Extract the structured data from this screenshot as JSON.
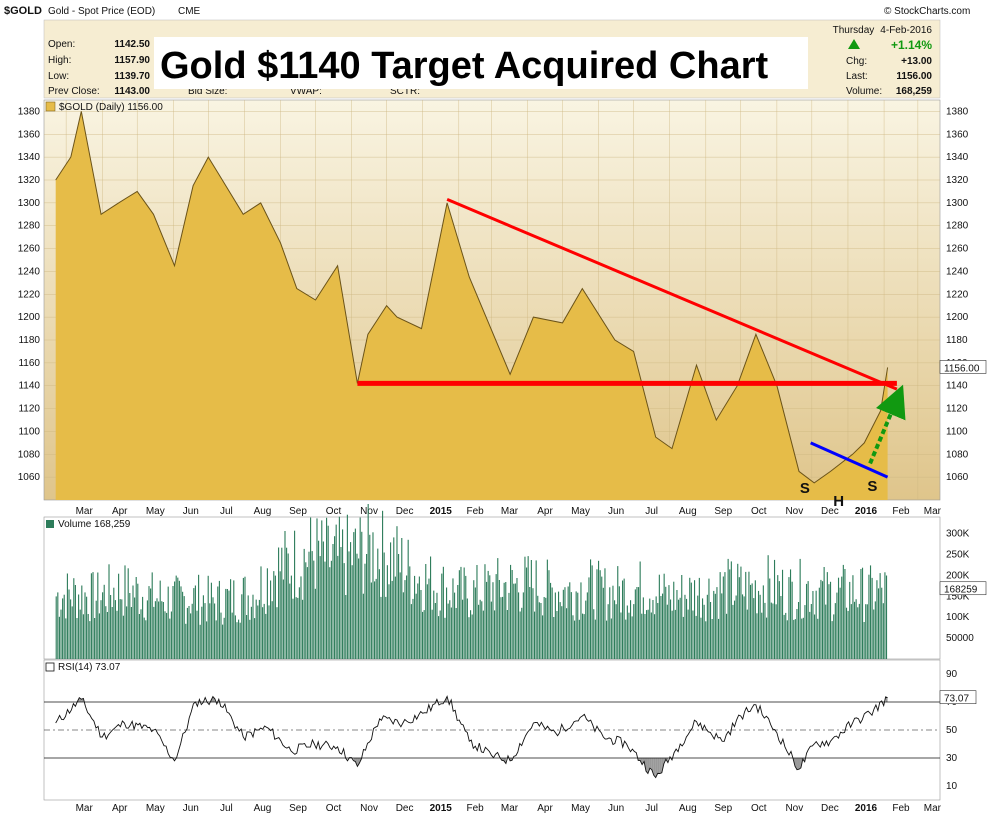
{
  "header": {
    "symbol": "$GOLD",
    "description": "Gold - Spot Price (EOD)",
    "exchange": "CME",
    "credit": "© StockCharts.com",
    "day": "Thursday",
    "date": "4-Feb-2016",
    "quote": {
      "open_label": "Open:",
      "open": "1142.50",
      "high_label": "High:",
      "high": "1157.90",
      "low_label": "Low:",
      "low": "1139.70",
      "prev_label": "Prev Close:",
      "prev": "1143.00",
      "bid_label": "Bid Size:",
      "vwap_label": "VWAP:",
      "sctr_label": "SCTR:",
      "pct_change": "+1.14%",
      "chg_label": "Chg:",
      "chg": "+13.00",
      "last_label": "Last:",
      "last": "1156.00",
      "volume_label": "Volume:",
      "volume": "168,259"
    },
    "overlay_title": "Gold $1140 Target Acquired Chart"
  },
  "colors": {
    "area_fill": "#E6BC48",
    "area_line": "#6B5318",
    "panel_bg_top": "#F9F4E2",
    "panel_bg_bottom": "#DFC58B",
    "volume_bar": "#2E7D5B",
    "trendline_red": "#FF0000",
    "trendline_blue": "#0000FF",
    "arrow_green": "#119911",
    "rsi_fill": "#808080"
  },
  "icons": {
    "price_legend": "gold-square-icon",
    "volume_legend": "volume-icon",
    "rsi_legend": "rsi-icon",
    "up": "up-triangle-icon"
  },
  "chart_data": [
    {
      "type": "area",
      "legend": "$GOLD (Daily) 1156.00",
      "last_value_label": "1156.00",
      "x_ticks": [
        "Mar",
        "Apr",
        "May",
        "Jun",
        "Jul",
        "Aug",
        "Sep",
        "Oct",
        "Nov",
        "Dec",
        "2015",
        "Feb",
        "Mar",
        "Apr",
        "May",
        "Jun",
        "Jul",
        "Aug",
        "Sep",
        "Oct",
        "Nov",
        "Dec",
        "2016",
        "Feb",
        "Mar"
      ],
      "ylim": [
        1040,
        1390
      ],
      "y_ticks": [
        1060,
        1080,
        1100,
        1120,
        1140,
        1160,
        1180,
        1200,
        1220,
        1240,
        1260,
        1280,
        1300,
        1320,
        1340,
        1360,
        1380
      ],
      "x": [
        "2014-02-20",
        "2014-03-05",
        "2014-03-14",
        "2014-03-31",
        "2014-04-15",
        "2014-05-01",
        "2014-05-15",
        "2014-06-02",
        "2014-06-18",
        "2014-07-01",
        "2014-07-10",
        "2014-07-31",
        "2014-08-15",
        "2014-09-01",
        "2014-09-15",
        "2014-10-01",
        "2014-10-20",
        "2014-11-06",
        "2014-11-15",
        "2014-12-01",
        "2014-12-10",
        "2014-12-31",
        "2015-01-22",
        "2015-02-10",
        "2015-03-17",
        "2015-04-06",
        "2015-05-01",
        "2015-05-18",
        "2015-06-15",
        "2015-07-01",
        "2015-07-20",
        "2015-08-03",
        "2015-08-24",
        "2015-09-10",
        "2015-09-28",
        "2015-10-14",
        "2015-11-01",
        "2015-11-20",
        "2015-12-03",
        "2015-12-17",
        "2016-01-05",
        "2016-01-15",
        "2016-01-29",
        "2016-02-04"
      ],
      "values": [
        1320,
        1340,
        1380,
        1290,
        1300,
        1310,
        1290,
        1245,
        1315,
        1340,
        1325,
        1290,
        1300,
        1265,
        1225,
        1215,
        1245,
        1142,
        1185,
        1210,
        1200,
        1190,
        1300,
        1235,
        1150,
        1200,
        1195,
        1225,
        1180,
        1170,
        1095,
        1085,
        1158,
        1110,
        1140,
        1185,
        1140,
        1065,
        1055,
        1065,
        1080,
        1090,
        1118,
        1156
      ],
      "annotations": [
        "S",
        "H",
        "S"
      ],
      "lines": [
        {
          "kind": "descending-resistance",
          "from": [
            "2015-01-22",
            1303
          ],
          "to": [
            "2016-02-12",
            1137
          ]
        },
        {
          "kind": "horizontal-support",
          "from": [
            "2014-11-06",
            1142
          ],
          "to": [
            "2016-02-12",
            1142
          ]
        },
        {
          "kind": "neckline",
          "from": [
            "2015-11-30",
            1090
          ],
          "to": [
            "2016-02-04",
            1060
          ]
        },
        {
          "kind": "projection-arrow",
          "from": [
            "2016-01-20",
            1072
          ],
          "to": [
            "2016-02-12",
            1128
          ]
        }
      ]
    },
    {
      "type": "bar",
      "legend": "Volume 168,259",
      "last_value_label": "168259",
      "y_tick_labels": [
        "300K",
        "250K",
        "200K",
        "150K",
        "100K",
        "50000"
      ],
      "y_tick_values": [
        300000,
        250000,
        200000,
        150000,
        100000,
        50000
      ],
      "ylim": [
        0,
        340000
      ],
      "x_start": "2014-02-20",
      "x_end": "2016-02-04",
      "values": [
        155000,
        160000,
        150000,
        170000,
        165000,
        150000,
        145000,
        150000,
        140000,
        150000,
        160000,
        220000,
        235000,
        260000,
        240000,
        255000,
        270000,
        250000,
        210000,
        185000,
        165000,
        160000,
        175000,
        180000,
        185000,
        170000,
        165000,
        175000,
        160000,
        170000,
        175000,
        150000,
        160000,
        165000,
        175000,
        170000,
        180000,
        165000,
        175000,
        160000,
        165000,
        160000,
        168259
      ]
    },
    {
      "type": "line",
      "legend": "RSI(14) 73.07",
      "last_value_label": "73.07",
      "ylim": [
        0,
        100
      ],
      "y_ticks": [
        10,
        30,
        50,
        70,
        90
      ],
      "x": [
        "2014-02-20",
        "2014-03-14",
        "2014-04-01",
        "2014-04-20",
        "2014-05-15",
        "2014-06-02",
        "2014-06-20",
        "2014-07-10",
        "2014-07-31",
        "2014-08-20",
        "2014-09-10",
        "2014-09-30",
        "2014-10-20",
        "2014-11-06",
        "2014-11-25",
        "2014-12-15",
        "2015-01-01",
        "2015-01-22",
        "2015-02-10",
        "2015-03-01",
        "2015-03-17",
        "2015-04-06",
        "2015-04-25",
        "2015-05-18",
        "2015-06-05",
        "2015-06-25",
        "2015-07-20",
        "2015-08-10",
        "2015-08-24",
        "2015-09-15",
        "2015-10-01",
        "2015-10-14",
        "2015-11-01",
        "2015-11-20",
        "2015-12-03",
        "2015-12-17",
        "2016-01-05",
        "2016-01-20",
        "2016-02-04"
      ],
      "values": [
        55,
        72,
        45,
        55,
        50,
        28,
        70,
        72,
        45,
        52,
        35,
        40,
        38,
        24,
        58,
        55,
        62,
        74,
        42,
        32,
        28,
        55,
        48,
        60,
        45,
        40,
        16,
        40,
        56,
        42,
        60,
        68,
        48,
        22,
        40,
        42,
        55,
        62,
        73.07
      ]
    }
  ]
}
